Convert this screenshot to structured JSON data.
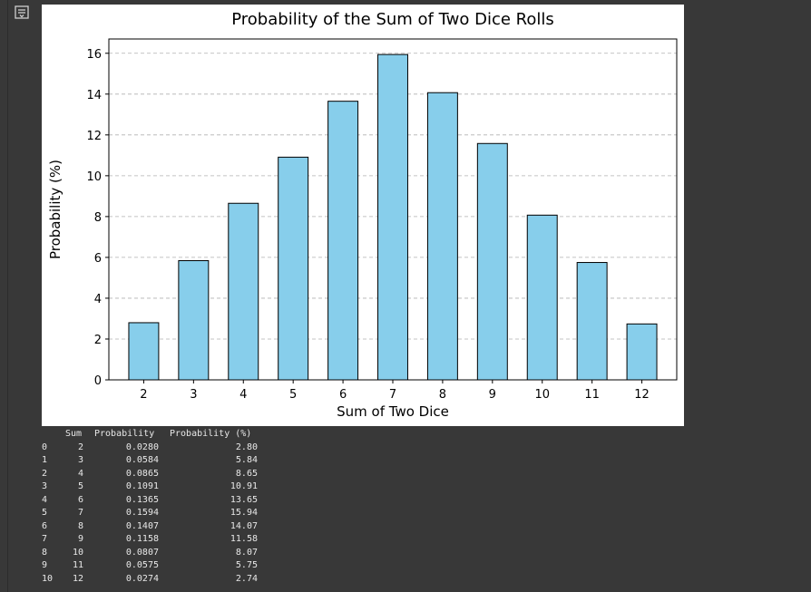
{
  "colors": {
    "bar_fill": "#87ceeb",
    "bar_edge": "#000000",
    "grid": "#b0b0b0",
    "background": "#383838",
    "output_text": "#e8e8e8"
  },
  "output_icon": "output-toggle-icon",
  "chart_data": {
    "type": "bar",
    "title": "Probability of the Sum of Two Dice Rolls",
    "xlabel": "Sum of Two Dice",
    "ylabel": "Probability (%)",
    "categories": [
      "2",
      "3",
      "4",
      "5",
      "6",
      "7",
      "8",
      "9",
      "10",
      "11",
      "12"
    ],
    "values": [
      2.8,
      5.84,
      8.65,
      10.91,
      13.65,
      15.94,
      14.07,
      11.58,
      8.07,
      5.75,
      2.74
    ],
    "ylim": [
      0,
      16.7
    ],
    "yticks": [
      "0",
      "2",
      "4",
      "6",
      "8",
      "10",
      "12",
      "14",
      "16"
    ],
    "grid": "horizontal dashed"
  },
  "table": {
    "columns": [
      "Sum",
      "Probability",
      "Probability (%)"
    ],
    "rows": [
      {
        "index": "0",
        "sum": "2",
        "prob": "0.0280",
        "pct": "2.80"
      },
      {
        "index": "1",
        "sum": "3",
        "prob": "0.0584",
        "pct": "5.84"
      },
      {
        "index": "2",
        "sum": "4",
        "prob": "0.0865",
        "pct": "8.65"
      },
      {
        "index": "3",
        "sum": "5",
        "prob": "0.1091",
        "pct": "10.91"
      },
      {
        "index": "4",
        "sum": "6",
        "prob": "0.1365",
        "pct": "13.65"
      },
      {
        "index": "5",
        "sum": "7",
        "prob": "0.1594",
        "pct": "15.94"
      },
      {
        "index": "6",
        "sum": "8",
        "prob": "0.1407",
        "pct": "14.07"
      },
      {
        "index": "7",
        "sum": "9",
        "prob": "0.1158",
        "pct": "11.58"
      },
      {
        "index": "8",
        "sum": "10",
        "prob": "0.0807",
        "pct": "8.07"
      },
      {
        "index": "9",
        "sum": "11",
        "prob": "0.0575",
        "pct": "5.75"
      },
      {
        "index": "10",
        "sum": "12",
        "prob": "0.0274",
        "pct": "2.74"
      }
    ]
  }
}
